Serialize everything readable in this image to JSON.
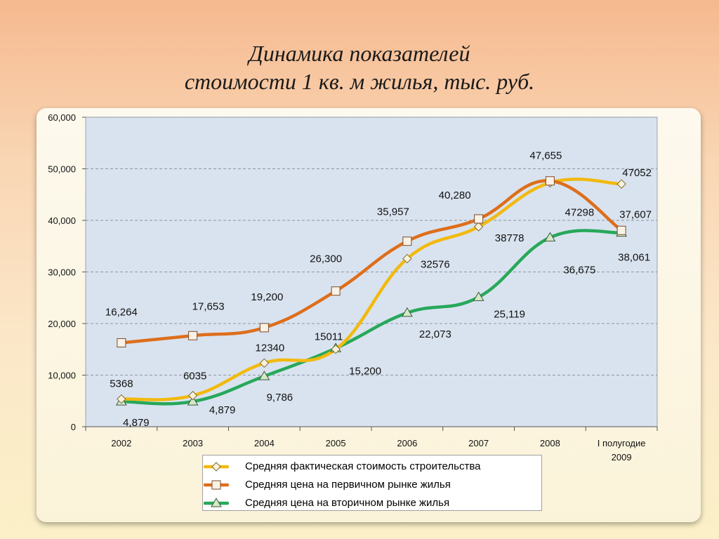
{
  "title": {
    "line1": "Динамика показателей",
    "line2": "стоимости 1 кв. м жилья, тыс. руб."
  },
  "colors": {
    "plot_bg": "#d9e3ef",
    "construction": "#f2b90f",
    "primary": "#de6e1b",
    "secondary": "#27a85a"
  },
  "chart_data": {
    "type": "line",
    "categories": [
      "2002",
      "2003",
      "2004",
      "2005",
      "2006",
      "2007",
      "2008",
      "I полугодие 2009"
    ],
    "ylim": [
      0,
      60000
    ],
    "yticks": [
      0,
      10000,
      20000,
      30000,
      40000,
      50000,
      60000
    ],
    "ytick_labels": [
      "0",
      "10,000",
      "20,000",
      "30,000",
      "40,000",
      "50,000",
      "60,000"
    ],
    "grid": true,
    "legend_position": "bottom",
    "series": [
      {
        "name": "Средняя фактическая стоимость строительства",
        "marker": "diamond",
        "values": [
          5368,
          6035,
          12340,
          15011,
          32576,
          38778,
          47298,
          47052
        ],
        "labels": [
          "5368",
          "6035",
          "12340",
          "15011",
          "32576",
          "38778",
          "47298",
          "47052"
        ]
      },
      {
        "name": "Средняя цена на первичном рынке жилья",
        "marker": "square",
        "values": [
          16264,
          17653,
          19200,
          26300,
          35957,
          40280,
          47655,
          38061
        ],
        "labels": [
          "16,264",
          "17,653",
          "19,200",
          "26,300",
          "35,957",
          "40,280",
          "47,655",
          "38,061"
        ]
      },
      {
        "name": "Средняя цена на вторичном рынке жилья",
        "marker": "triangle",
        "values": [
          4879,
          4879,
          9786,
          15200,
          22073,
          25119,
          36675,
          37607
        ],
        "labels": [
          "4,879",
          "4,879",
          "9,786",
          "15,200",
          "22,073",
          "25,119",
          "36,675",
          "37,607"
        ]
      }
    ]
  }
}
